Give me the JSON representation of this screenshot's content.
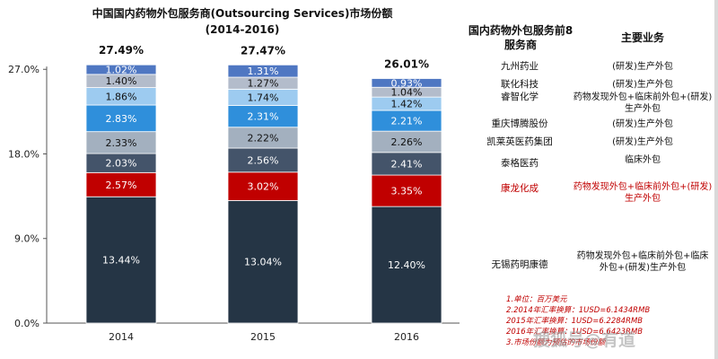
{
  "title_line1": "中国国内药物外包服务商(Outsourcing Services)市场份额",
  "title_line2": "(2014-2016)",
  "chart_data": {
    "type": "bar",
    "stacked": true,
    "categories": [
      "2014",
      "2015",
      "2016"
    ],
    "totals": [
      "27.49%",
      "27.47%",
      "26.01%"
    ],
    "yticks": [
      "0.0%",
      "9.0%",
      "18.0%",
      "27.0%"
    ],
    "ylim": [
      0,
      27.5
    ],
    "series": [
      {
        "name": "无锡药明康德",
        "color": "#253545",
        "values": [
          13.44,
          13.04,
          12.4
        ],
        "labels": [
          "13.44%",
          "13.04%",
          "12.40%"
        ]
      },
      {
        "name": "康龙化成",
        "color": "#c00000",
        "values": [
          2.57,
          3.02,
          3.35
        ],
        "labels": [
          "2.57%",
          "3.02%",
          "3.35%"
        ]
      },
      {
        "name": "泰格医药",
        "color": "#44546a",
        "values": [
          2.03,
          2.56,
          2.41
        ],
        "labels": [
          "2.03%",
          "2.56%",
          "2.41%"
        ]
      },
      {
        "name": "凯莱英医药集团",
        "color": "#a3b0bf",
        "values": [
          2.33,
          2.22,
          2.26
        ],
        "labels": [
          "2.33%",
          "2.22%",
          "2.26%"
        ]
      },
      {
        "name": "重庆博腾股份",
        "color": "#2f8fdb",
        "values": [
          2.83,
          2.31,
          2.21
        ],
        "labels": [
          "2.83%",
          "2.31%",
          "2.21%"
        ]
      },
      {
        "name": "睿智化学",
        "color": "#9dcbf0",
        "values": [
          1.86,
          1.74,
          1.42
        ],
        "labels": [
          "1.86%",
          "1.74%",
          "1.42%"
        ]
      },
      {
        "name": "联化科技",
        "color": "#b3bccb",
        "values": [
          1.4,
          1.27,
          1.04
        ],
        "labels": [
          "1.40%",
          "1.27%",
          "1.04%"
        ]
      },
      {
        "name": "九州药业",
        "color": "#4f77c2",
        "values": [
          1.02,
          1.31,
          0.93
        ],
        "labels": [
          "1.02%",
          "1.31%",
          "0.93%"
        ]
      }
    ]
  },
  "table": {
    "header_company": "国内药物外包服务前8服务商",
    "header_business": "主要业务",
    "rows": [
      {
        "company": "九州药业",
        "business": "(研发)生产外包",
        "highlight": false
      },
      {
        "company": "联化科技",
        "business": "(研发)生产外包",
        "highlight": false
      },
      {
        "company": "睿智化学",
        "business": "药物发现外包+临床前外包+(研发)生产外包",
        "highlight": false
      },
      {
        "company": "重庆博腾股份",
        "business": "(研发)生产外包",
        "highlight": false
      },
      {
        "company": "凯莱英医药集团",
        "business": "(研发)生产外包",
        "highlight": false
      },
      {
        "company": "泰格医药",
        "business": "临床外包",
        "highlight": false
      },
      {
        "company": "康龙化成",
        "business": "药物发现外包+临床前外包+(研发)生产外包",
        "highlight": true
      },
      {
        "company": "无锡药明康德",
        "business": "药物发现外包+临床前外包+临床外包+(研发)生产外包",
        "highlight": false
      }
    ]
  },
  "notes": [
    "1.单位：百万美元",
    "2.2014年汇率换算：1USD=6.1434RMB",
    "2015年汇率换算：1USD=6.2284RMB",
    "2016年汇率换算：1USD=6.6423RMB",
    "3.市场份额为预估的市场份额"
  ],
  "watermark": "搜狐号@有道"
}
